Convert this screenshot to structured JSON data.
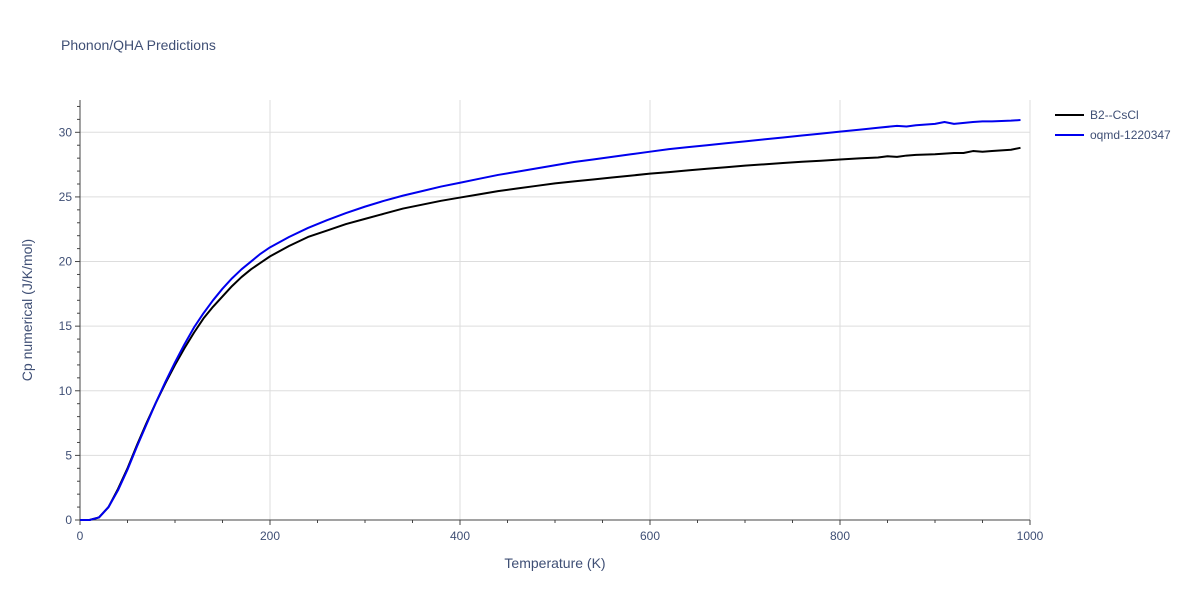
{
  "chart_data": {
    "type": "line",
    "title": "Phonon/QHA Predictions",
    "xlabel": "Temperature (K)",
    "ylabel": "Cp numerical (J/K/mol)",
    "xlim": [
      0,
      1000
    ],
    "ylim": [
      0,
      32.5
    ],
    "xticks": [
      0,
      200,
      400,
      600,
      800,
      1000
    ],
    "yticks": [
      0,
      5,
      10,
      15,
      20,
      25,
      30
    ],
    "grid": true,
    "legend": "top-right",
    "series": [
      {
        "name": "B2--CsCl",
        "color": "#000000",
        "x": [
          10,
          20,
          30,
          40,
          50,
          60,
          70,
          80,
          90,
          100,
          110,
          120,
          130,
          140,
          150,
          160,
          170,
          180,
          190,
          200,
          220,
          240,
          260,
          280,
          300,
          320,
          340,
          360,
          380,
          400,
          420,
          440,
          460,
          480,
          500,
          520,
          540,
          560,
          580,
          600,
          620,
          640,
          660,
          680,
          700,
          720,
          740,
          760,
          780,
          790,
          800,
          820,
          840,
          850,
          860,
          870,
          880,
          900,
          920,
          930,
          940,
          950,
          960,
          980,
          990
        ],
        "y": [
          0.0,
          0.2,
          1.0,
          2.4,
          4.0,
          5.8,
          7.5,
          9.1,
          10.6,
          12.0,
          13.3,
          14.5,
          15.6,
          16.5,
          17.3,
          18.1,
          18.8,
          19.4,
          19.9,
          20.4,
          21.2,
          21.9,
          22.4,
          22.9,
          23.3,
          23.7,
          24.1,
          24.4,
          24.7,
          24.95,
          25.2,
          25.45,
          25.65,
          25.85,
          26.05,
          26.2,
          26.35,
          26.5,
          26.65,
          26.8,
          26.92,
          27.05,
          27.18,
          27.3,
          27.42,
          27.52,
          27.62,
          27.72,
          27.8,
          27.85,
          27.9,
          27.98,
          28.05,
          28.15,
          28.1,
          28.2,
          28.25,
          28.3,
          28.4,
          28.4,
          28.55,
          28.5,
          28.55,
          28.65,
          28.8
        ]
      },
      {
        "name": "oqmd-1220347",
        "color": "#0000ee",
        "x": [
          10,
          20,
          30,
          40,
          50,
          60,
          70,
          80,
          90,
          100,
          110,
          120,
          130,
          140,
          150,
          160,
          170,
          180,
          190,
          200,
          220,
          240,
          260,
          280,
          300,
          320,
          340,
          360,
          380,
          400,
          420,
          440,
          460,
          480,
          500,
          520,
          540,
          560,
          580,
          600,
          620,
          640,
          660,
          680,
          700,
          720,
          740,
          760,
          780,
          800,
          820,
          840,
          860,
          870,
          880,
          900,
          910,
          920,
          940,
          950,
          960,
          980,
          990
        ],
        "y": [
          0.0,
          0.2,
          1.0,
          2.3,
          3.9,
          5.7,
          7.4,
          9.1,
          10.7,
          12.2,
          13.6,
          14.9,
          16.0,
          17.0,
          17.9,
          18.7,
          19.4,
          20.0,
          20.6,
          21.1,
          21.9,
          22.6,
          23.2,
          23.75,
          24.25,
          24.7,
          25.1,
          25.45,
          25.8,
          26.1,
          26.4,
          26.7,
          26.95,
          27.2,
          27.45,
          27.7,
          27.9,
          28.1,
          28.3,
          28.5,
          28.7,
          28.85,
          29.0,
          29.15,
          29.3,
          29.45,
          29.6,
          29.75,
          29.9,
          30.05,
          30.2,
          30.35,
          30.5,
          30.45,
          30.55,
          30.65,
          30.8,
          30.65,
          30.8,
          30.85,
          30.85,
          30.9,
          30.95
        ]
      }
    ]
  }
}
